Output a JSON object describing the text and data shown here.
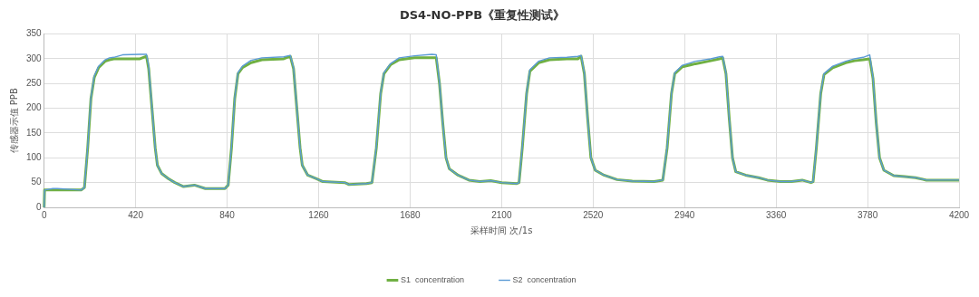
{
  "chart_data": {
    "type": "line",
    "title": "DS4-NO-PPB《重复性测试》",
    "xlabel": "采样时间 次/1s",
    "ylabel": "传感器示值 PPB",
    "x": [
      0,
      2,
      40,
      60,
      170,
      185,
      200,
      215,
      230,
      250,
      280,
      300,
      320,
      360,
      440,
      470,
      480,
      495,
      510,
      520,
      540,
      570,
      600,
      640,
      690,
      740,
      830,
      845,
      860,
      875,
      890,
      910,
      950,
      1000,
      1100,
      1130,
      1145,
      1160,
      1175,
      1185,
      1210,
      1250,
      1280,
      1380,
      1400,
      1480,
      1505,
      1525,
      1545,
      1560,
      1590,
      1630,
      1700,
      1780,
      1800,
      1815,
      1830,
      1845,
      1860,
      1900,
      1950,
      2000,
      2050,
      2100,
      2170,
      2180,
      2195,
      2215,
      2230,
      2270,
      2320,
      2400,
      2450,
      2465,
      2480,
      2495,
      2510,
      2530,
      2570,
      2630,
      2700,
      2800,
      2840,
      2860,
      2880,
      2895,
      2930,
      2990,
      3060,
      3100,
      3115,
      3130,
      3145,
      3160,
      3175,
      3220,
      3280,
      3320,
      3380,
      3430,
      3480,
      3520,
      3530,
      3545,
      3565,
      3580,
      3620,
      3680,
      3720,
      3760,
      3790,
      3805,
      3820,
      3835,
      3855,
      3900,
      3950,
      4000,
      4050,
      4200
    ],
    "series": [
      {
        "name": "S1  concentration",
        "color": "#70b043",
        "values": [
          0,
          35,
          35,
          35,
          35,
          40,
          120,
          220,
          262,
          282,
          295,
          298,
          300,
          300,
          300,
          305,
          280,
          200,
          120,
          85,
          68,
          58,
          50,
          42,
          45,
          38,
          38,
          45,
          120,
          220,
          270,
          282,
          292,
          298,
          300,
          305,
          280,
          200,
          120,
          85,
          65,
          58,
          52,
          50,
          46,
          48,
          50,
          120,
          230,
          270,
          288,
          298,
          302,
          302,
          302,
          250,
          170,
          100,
          78,
          65,
          55,
          52,
          54,
          50,
          48,
          50,
          120,
          230,
          275,
          292,
          298,
          300,
          300,
          305,
          270,
          180,
          100,
          75,
          65,
          56,
          53,
          52,
          55,
          120,
          230,
          270,
          284,
          290,
          296,
          300,
          302,
          270,
          180,
          100,
          72,
          65,
          60,
          55,
          52,
          52,
          55,
          50,
          52,
          120,
          230,
          268,
          282,
          292,
          296,
          298,
          300,
          260,
          170,
          100,
          75,
          64,
          62,
          60,
          55,
          55
        ]
      },
      {
        "name": "S2  concentration",
        "color": "#5b9bd5",
        "values": [
          0,
          35,
          38,
          38,
          35,
          40,
          122,
          222,
          265,
          285,
          298,
          302,
          303,
          308,
          309,
          309,
          285,
          202,
          120,
          85,
          68,
          58,
          50,
          42,
          45,
          38,
          38,
          45,
          122,
          222,
          272,
          285,
          297,
          302,
          304,
          307,
          282,
          202,
          120,
          85,
          65,
          58,
          52,
          50,
          46,
          48,
          50,
          122,
          232,
          272,
          290,
          302,
          306,
          309,
          308,
          252,
          170,
          100,
          78,
          65,
          55,
          52,
          54,
          50,
          48,
          50,
          122,
          232,
          278,
          295,
          302,
          303,
          305,
          307,
          272,
          180,
          100,
          75,
          65,
          56,
          53,
          52,
          55,
          122,
          232,
          272,
          287,
          295,
          300,
          304,
          305,
          272,
          180,
          100,
          72,
          65,
          60,
          55,
          52,
          52,
          55,
          50,
          52,
          122,
          232,
          270,
          285,
          295,
          300,
          303,
          308,
          262,
          170,
          100,
          75,
          64,
          62,
          60,
          55,
          55
        ]
      }
    ],
    "xlim": [
      0,
      4200
    ],
    "xticks": [
      0,
      420,
      840,
      1260,
      1680,
      2100,
      2520,
      2940,
      3360,
      3780,
      4200
    ],
    "ylim": [
      0,
      350
    ],
    "yticks": [
      0,
      50,
      100,
      150,
      200,
      250,
      300,
      350
    ],
    "grid": true,
    "legend": "bottom",
    "marker": "none",
    "line_style": "solid"
  }
}
